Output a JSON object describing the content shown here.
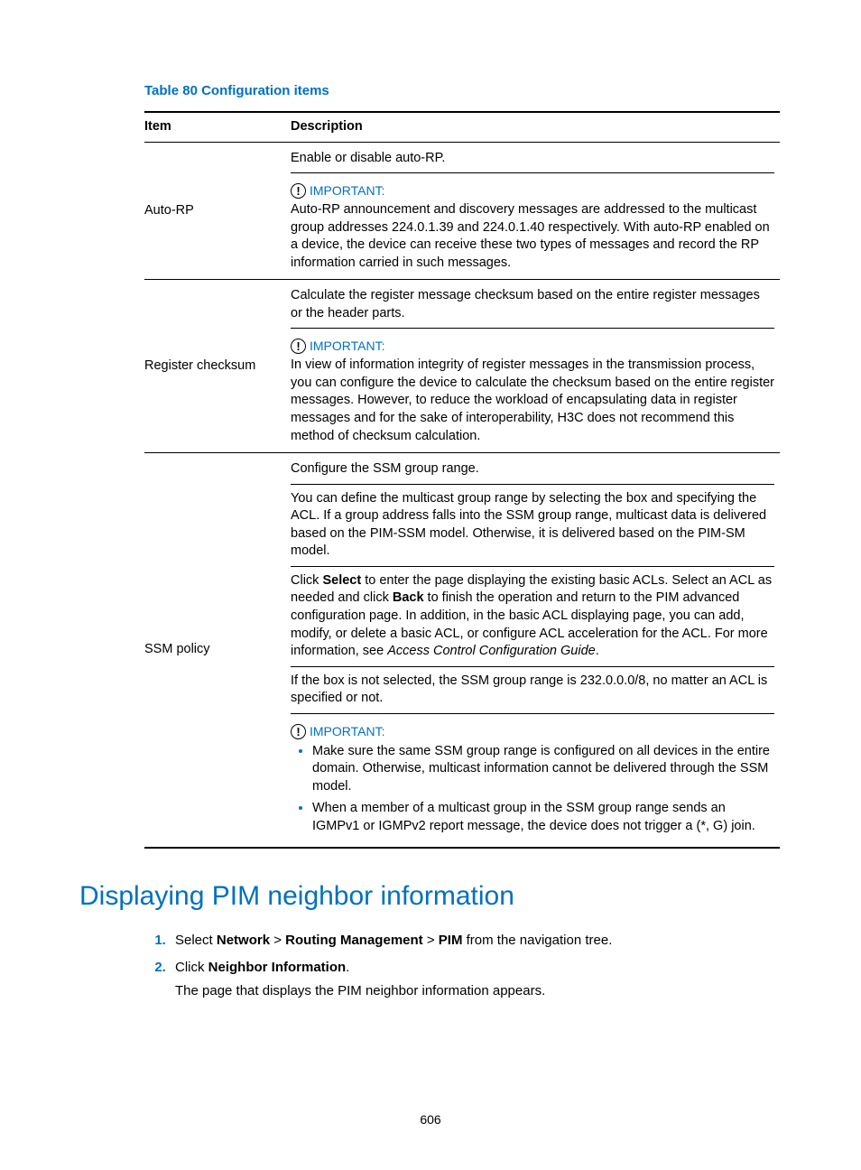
{
  "table": {
    "title": "Table 80 Configuration items",
    "headers": {
      "item": "Item",
      "desc": "Description"
    },
    "rows": [
      {
        "item": "Auto-RP",
        "line1": "Enable or disable auto-RP.",
        "imp_label": "IMPORTANT:",
        "imp_text": "Auto-RP announcement and discovery messages are addressed to the multicast group addresses 224.0.1.39 and 224.0.1.40 respectively. With auto-RP enabled on a device, the device can receive these two types of messages and record the RP information carried in such messages."
      },
      {
        "item": "Register checksum",
        "line1": "Calculate the register message checksum based on the entire register messages or the header parts.",
        "imp_label": "IMPORTANT:",
        "imp_text": "In view of information integrity of register messages in the transmission process, you can configure the device to calculate the checksum based on the entire register messages. However, to reduce the workload of encapsulating data in register messages and for the sake of interoperability, H3C does not recommend this method of checksum calculation."
      },
      {
        "item": "SSM policy",
        "l1": "Configure the SSM group range.",
        "l2": "You can define the multicast group range by selecting the box and specifying the ACL. If a group address falls into the SSM group range, multicast data is delivered based on the PIM-SSM model. Otherwise, it is delivered based on the PIM-SM model.",
        "l3a": "Click ",
        "l3b": "Select",
        "l3c": " to enter the page displaying the existing basic ACLs. Select an ACL as needed and click ",
        "l3d": "Back",
        "l3e": " to finish the operation and return to the PIM advanced configuration page. In addition, in the basic ACL displaying page, you can add, modify, or delete a basic ACL, or configure ACL acceleration for the ACL. For more information, see ",
        "l3f": "Access Control Configuration Guide",
        "l3g": ".",
        "l4": "If the box is not selected, the SSM group range is 232.0.0.0/8, no matter an ACL is specified or not.",
        "imp_label": "IMPORTANT:",
        "b1": "Make sure the same SSM group range is configured on all devices in the entire domain. Otherwise, multicast information cannot be delivered through the SSM model.",
        "b2": "When a member of a multicast group in the SSM group range sends an IGMPv1 or IGMPv2 report message, the device does not trigger a (*, G) join."
      }
    ]
  },
  "section": {
    "title": "Displaying PIM neighbor information",
    "steps": [
      {
        "pre": "Select ",
        "b1": "Network",
        "s1": " > ",
        "b2": "Routing Management",
        "s2": " > ",
        "b3": "PIM",
        "post": " from the navigation tree."
      },
      {
        "pre": "Click ",
        "b1": "Neighbor Information",
        "post": ".",
        "after": "The page that displays the PIM neighbor information appears."
      }
    ]
  },
  "page_number": "606"
}
